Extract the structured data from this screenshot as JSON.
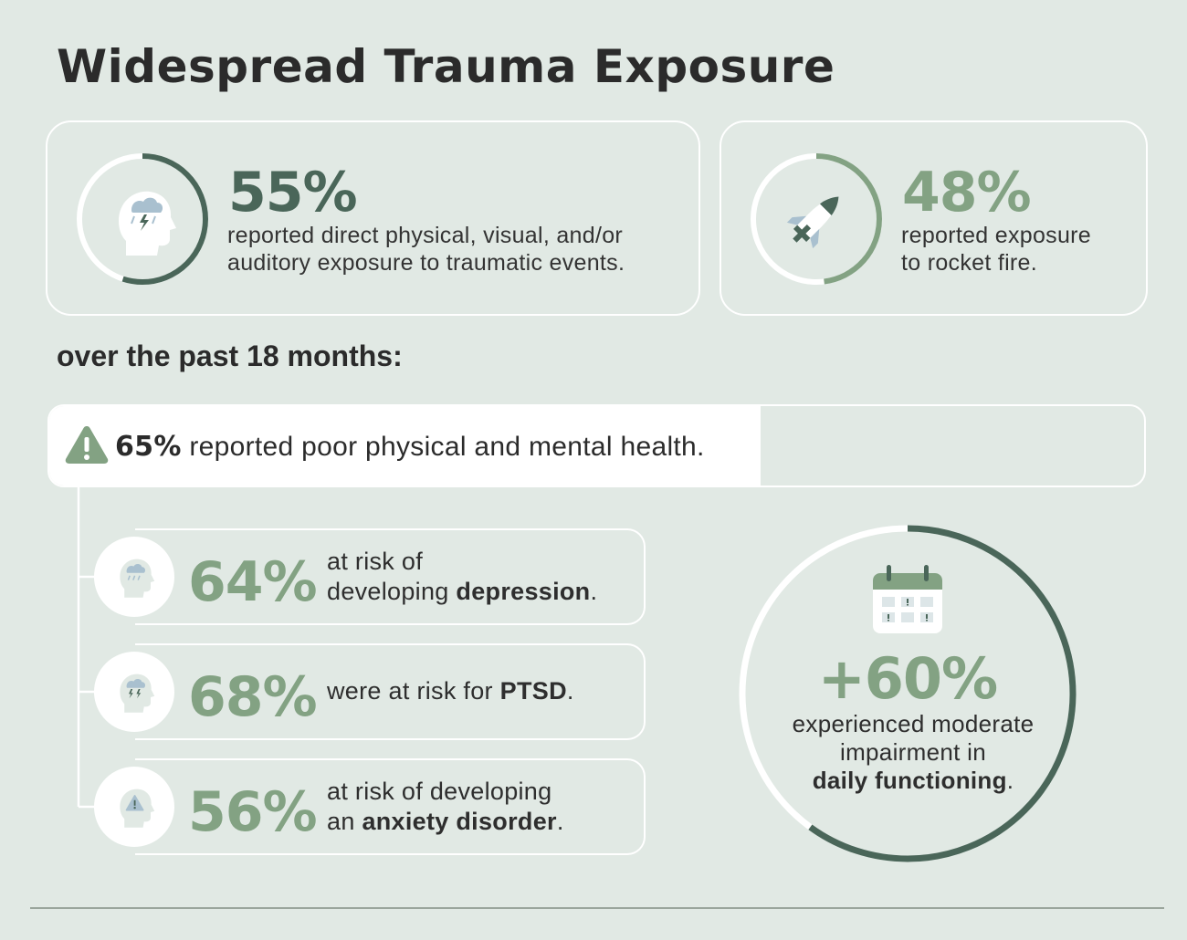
{
  "title": "Widespread Trauma Exposure",
  "cards": [
    {
      "value": "55%",
      "fraction": 0.55,
      "icon": "head-storm-icon",
      "text_line1": "reported direct physical, visual, and/or",
      "text_line2": "auditory exposure to traumatic events."
    },
    {
      "value": "48%",
      "fraction": 0.48,
      "icon": "rocket-icon",
      "text_line1": "reported exposure",
      "text_line2": "to rocket fire."
    }
  ],
  "subheading": "over the past 18 months:",
  "banner": {
    "value": "65%",
    "fraction": 0.65,
    "text": " reported poor physical and mental health.",
    "icon": "warning-icon"
  },
  "risks": [
    {
      "value": "64%",
      "line1": "at risk of",
      "line2_pre": "developing ",
      "line2_bold": "depression",
      "line2_post": ".",
      "icon": "head-rain-icon"
    },
    {
      "value": "68%",
      "line1_pre": "were at risk for ",
      "line1_bold": "PTSD",
      "line1_post": ".",
      "icon": "head-lightning-icon"
    },
    {
      "value": "56%",
      "line1": "at risk of developing",
      "line2_pre": "an ",
      "line2_bold": "anxiety disorder",
      "line2_post": ".",
      "icon": "head-warning-icon"
    }
  ],
  "impairment": {
    "value": "+60%",
    "fraction": 0.6,
    "line1": "experienced moderate",
    "line2": "impairment in",
    "line3_bold": "daily functioning",
    "line3_post": ".",
    "icon": "calendar-icon"
  },
  "colors": {
    "dark_green": "#4a6659",
    "light_green": "#83a283",
    "background": "#e1e9e4",
    "icon_blue": "#a9c0cf"
  }
}
